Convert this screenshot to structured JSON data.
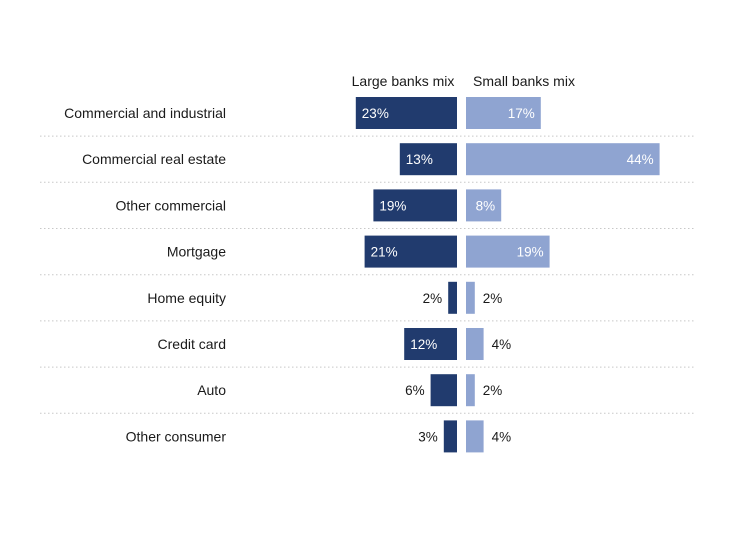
{
  "chart_data": {
    "type": "bar",
    "layout": "butterfly",
    "headers": {
      "left": "Large banks mix",
      "right": "Small banks mix"
    },
    "categories": [
      "Commercial and industrial",
      "Commercial real estate",
      "Other commercial",
      "Mortgage",
      "Home equity",
      "Credit card",
      "Auto",
      "Other consumer"
    ],
    "series": [
      {
        "name": "Large banks mix",
        "values": [
          23,
          13,
          19,
          21,
          2,
          12,
          6,
          3
        ],
        "labels": [
          "23%",
          "13%",
          "19%",
          "21%",
          "2%",
          "12%",
          "6%",
          "3%"
        ],
        "color": "#213b6e"
      },
      {
        "name": "Small banks mix",
        "values": [
          17,
          44,
          8,
          19,
          2,
          4,
          2,
          4
        ],
        "labels": [
          "17%",
          "44%",
          "8%",
          "19%",
          "2%",
          "4%",
          "2%",
          "4%"
        ],
        "color": "#8fa4d1"
      }
    ],
    "unit": "%",
    "row_separators": "dotted",
    "grid": false
  }
}
